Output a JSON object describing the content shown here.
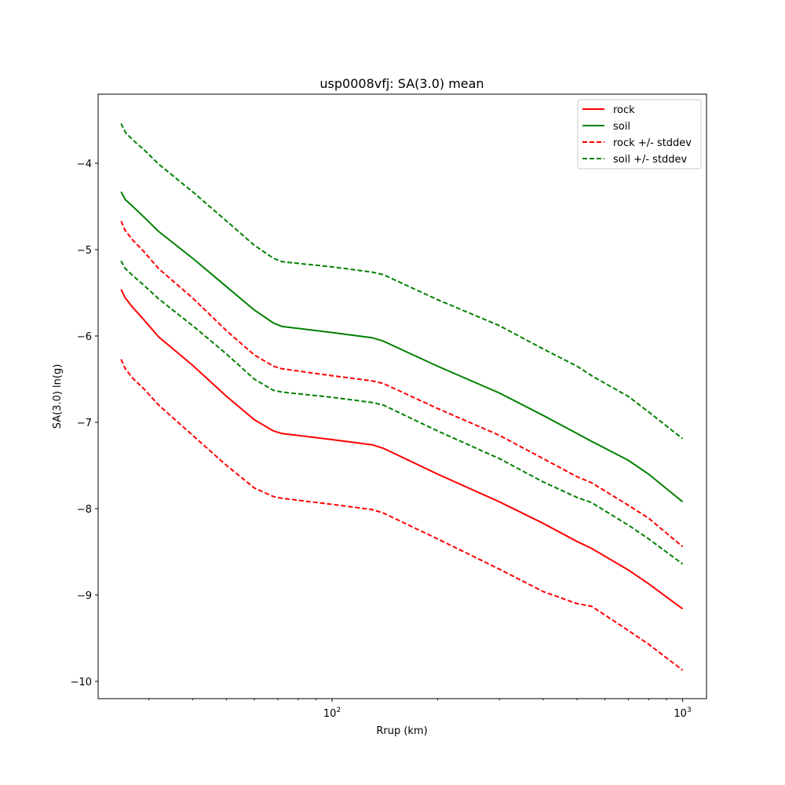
{
  "chart_data": {
    "type": "line",
    "title": "usp0008vfj: SA(3.0) mean",
    "xlabel": "Rrup (km)",
    "ylabel": "SA(3.0) ln(g)",
    "xscale": "log",
    "xlim": [
      21.5,
      1170
    ],
    "ylim": [
      -10.2,
      -3.2
    ],
    "xticks": [
      {
        "value": 100,
        "base": "10",
        "exp": "2"
      },
      {
        "value": 1000,
        "base": "10",
        "exp": "3"
      }
    ],
    "yticks": [
      -10,
      -9,
      -8,
      -7,
      -6,
      -5,
      -4
    ],
    "grid": false,
    "legend_position": "top-right",
    "series": [
      {
        "name": "rock",
        "color": "#ff0000",
        "dash": "solid",
        "points": [
          [
            25,
            -5.46
          ],
          [
            25.7,
            -5.56
          ],
          [
            27,
            -5.67
          ],
          [
            29,
            -5.81
          ],
          [
            32,
            -6.01
          ],
          [
            40,
            -6.34
          ],
          [
            50,
            -6.7
          ],
          [
            60,
            -6.97
          ],
          [
            68,
            -7.1
          ],
          [
            72,
            -7.13
          ],
          [
            100,
            -7.2
          ],
          [
            130,
            -7.26
          ],
          [
            140,
            -7.3
          ],
          [
            200,
            -7.6
          ],
          [
            300,
            -7.92
          ],
          [
            400,
            -8.17
          ],
          [
            500,
            -8.38
          ],
          [
            550,
            -8.46
          ],
          [
            700,
            -8.71
          ],
          [
            800,
            -8.87
          ],
          [
            1000,
            -9.16
          ]
        ]
      },
      {
        "name": "soil",
        "color": "#008000",
        "dash": "solid",
        "points": [
          [
            25,
            -4.33
          ],
          [
            25.7,
            -4.42
          ],
          [
            27,
            -4.5
          ],
          [
            29,
            -4.62
          ],
          [
            32,
            -4.79
          ],
          [
            40,
            -5.1
          ],
          [
            50,
            -5.43
          ],
          [
            60,
            -5.7
          ],
          [
            68,
            -5.85
          ],
          [
            72,
            -5.89
          ],
          [
            100,
            -5.96
          ],
          [
            130,
            -6.02
          ],
          [
            140,
            -6.06
          ],
          [
            200,
            -6.35
          ],
          [
            300,
            -6.66
          ],
          [
            400,
            -6.92
          ],
          [
            500,
            -7.13
          ],
          [
            550,
            -7.22
          ],
          [
            700,
            -7.44
          ],
          [
            800,
            -7.6
          ],
          [
            1000,
            -7.92
          ]
        ]
      },
      {
        "name": "rock +/- stddev",
        "color": "#ff0000",
        "dash": "dashed",
        "points": [
          [
            25,
            -4.67
          ],
          [
            25.7,
            -4.78
          ],
          [
            27,
            -4.89
          ],
          [
            29,
            -5.02
          ],
          [
            32,
            -5.22
          ],
          [
            40,
            -5.56
          ],
          [
            50,
            -5.94
          ],
          [
            60,
            -6.22
          ],
          [
            68,
            -6.35
          ],
          [
            72,
            -6.38
          ],
          [
            100,
            -6.46
          ],
          [
            130,
            -6.52
          ],
          [
            140,
            -6.55
          ],
          [
            200,
            -6.84
          ],
          [
            300,
            -7.15
          ],
          [
            400,
            -7.42
          ],
          [
            500,
            -7.63
          ],
          [
            550,
            -7.7
          ],
          [
            700,
            -7.96
          ],
          [
            800,
            -8.11
          ],
          [
            1000,
            -8.44
          ]
        ]
      },
      {
        "name": "rock +/- stddev",
        "color": "#ff0000",
        "dash": "dashed",
        "points": [
          [
            25,
            -6.27
          ],
          [
            25.7,
            -6.38
          ],
          [
            27,
            -6.49
          ],
          [
            29,
            -6.61
          ],
          [
            32,
            -6.8
          ],
          [
            40,
            -7.15
          ],
          [
            50,
            -7.5
          ],
          [
            60,
            -7.76
          ],
          [
            68,
            -7.86
          ],
          [
            72,
            -7.88
          ],
          [
            100,
            -7.95
          ],
          [
            130,
            -8.01
          ],
          [
            140,
            -8.05
          ],
          [
            200,
            -8.35
          ],
          [
            300,
            -8.7
          ],
          [
            400,
            -8.96
          ],
          [
            500,
            -9.1
          ],
          [
            550,
            -9.13
          ],
          [
            700,
            -9.41
          ],
          [
            800,
            -9.57
          ],
          [
            1000,
            -9.87
          ]
        ]
      },
      {
        "name": "soil +/- stddev",
        "color": "#008000",
        "dash": "dashed",
        "points": [
          [
            25,
            -3.54
          ],
          [
            25.7,
            -3.64
          ],
          [
            27,
            -3.73
          ],
          [
            29,
            -3.84
          ],
          [
            32,
            -4.01
          ],
          [
            40,
            -4.33
          ],
          [
            50,
            -4.67
          ],
          [
            60,
            -4.95
          ],
          [
            68,
            -5.1
          ],
          [
            72,
            -5.14
          ],
          [
            100,
            -5.2
          ],
          [
            130,
            -5.26
          ],
          [
            140,
            -5.29
          ],
          [
            200,
            -5.58
          ],
          [
            300,
            -5.88
          ],
          [
            400,
            -6.15
          ],
          [
            500,
            -6.35
          ],
          [
            550,
            -6.46
          ],
          [
            700,
            -6.7
          ],
          [
            800,
            -6.88
          ],
          [
            1000,
            -7.19
          ]
        ]
      },
      {
        "name": "soil +/- stddev",
        "color": "#008000",
        "dash": "dashed",
        "points": [
          [
            25,
            -5.13
          ],
          [
            25.7,
            -5.22
          ],
          [
            27,
            -5.3
          ],
          [
            29,
            -5.41
          ],
          [
            32,
            -5.57
          ],
          [
            40,
            -5.88
          ],
          [
            50,
            -6.21
          ],
          [
            60,
            -6.5
          ],
          [
            68,
            -6.63
          ],
          [
            72,
            -6.65
          ],
          [
            100,
            -6.71
          ],
          [
            130,
            -6.77
          ],
          [
            140,
            -6.8
          ],
          [
            200,
            -7.1
          ],
          [
            300,
            -7.42
          ],
          [
            400,
            -7.69
          ],
          [
            500,
            -7.87
          ],
          [
            550,
            -7.93
          ],
          [
            700,
            -8.19
          ],
          [
            800,
            -8.35
          ],
          [
            1000,
            -8.64
          ]
        ]
      }
    ],
    "legend": [
      {
        "label": "rock",
        "color": "#ff0000",
        "dash": "solid"
      },
      {
        "label": "soil",
        "color": "#008000",
        "dash": "solid"
      },
      {
        "label": "rock +/- stddev",
        "color": "#ff0000",
        "dash": "dashed"
      },
      {
        "label": "soil +/- stddev",
        "color": "#008000",
        "dash": "dashed"
      }
    ]
  }
}
